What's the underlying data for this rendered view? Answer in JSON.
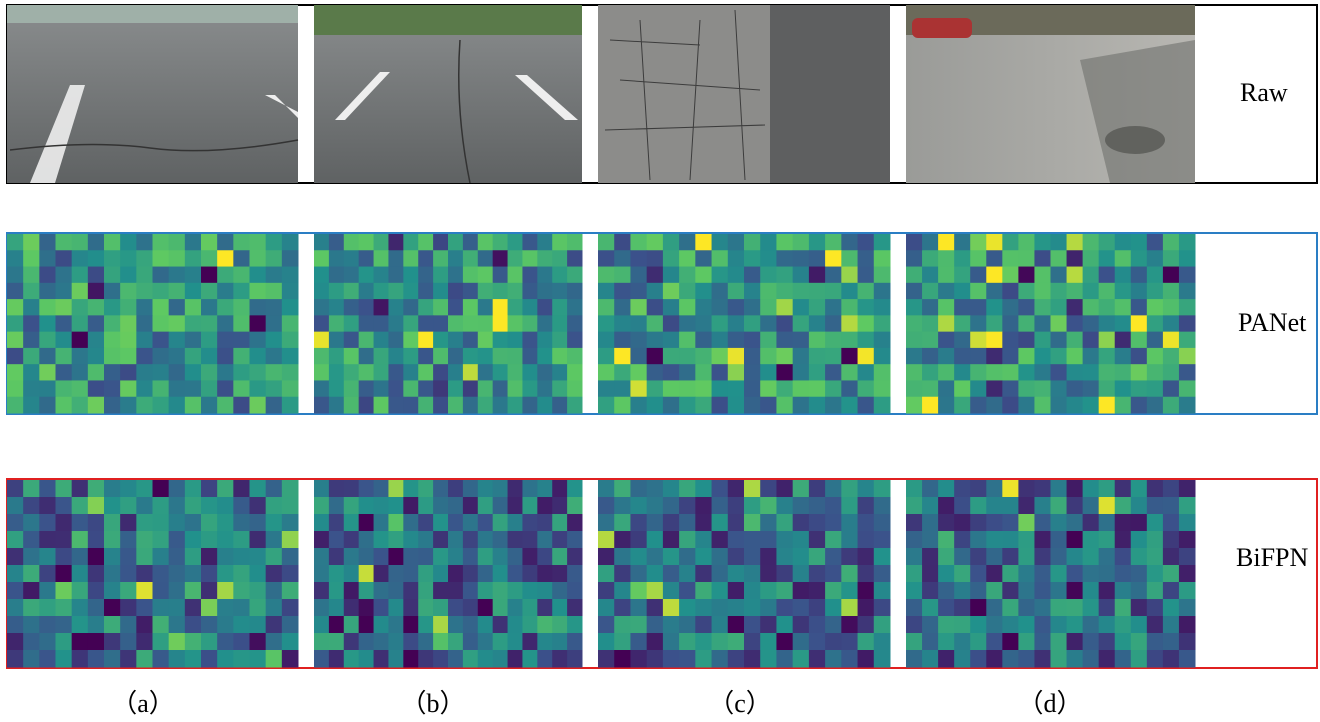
{
  "rows": [
    {
      "label": "Raw"
    },
    {
      "label": "PANet"
    },
    {
      "label": "BiFPN"
    }
  ],
  "columns": [
    "（a）",
    "（b）",
    "（c）",
    "（d）"
  ]
}
